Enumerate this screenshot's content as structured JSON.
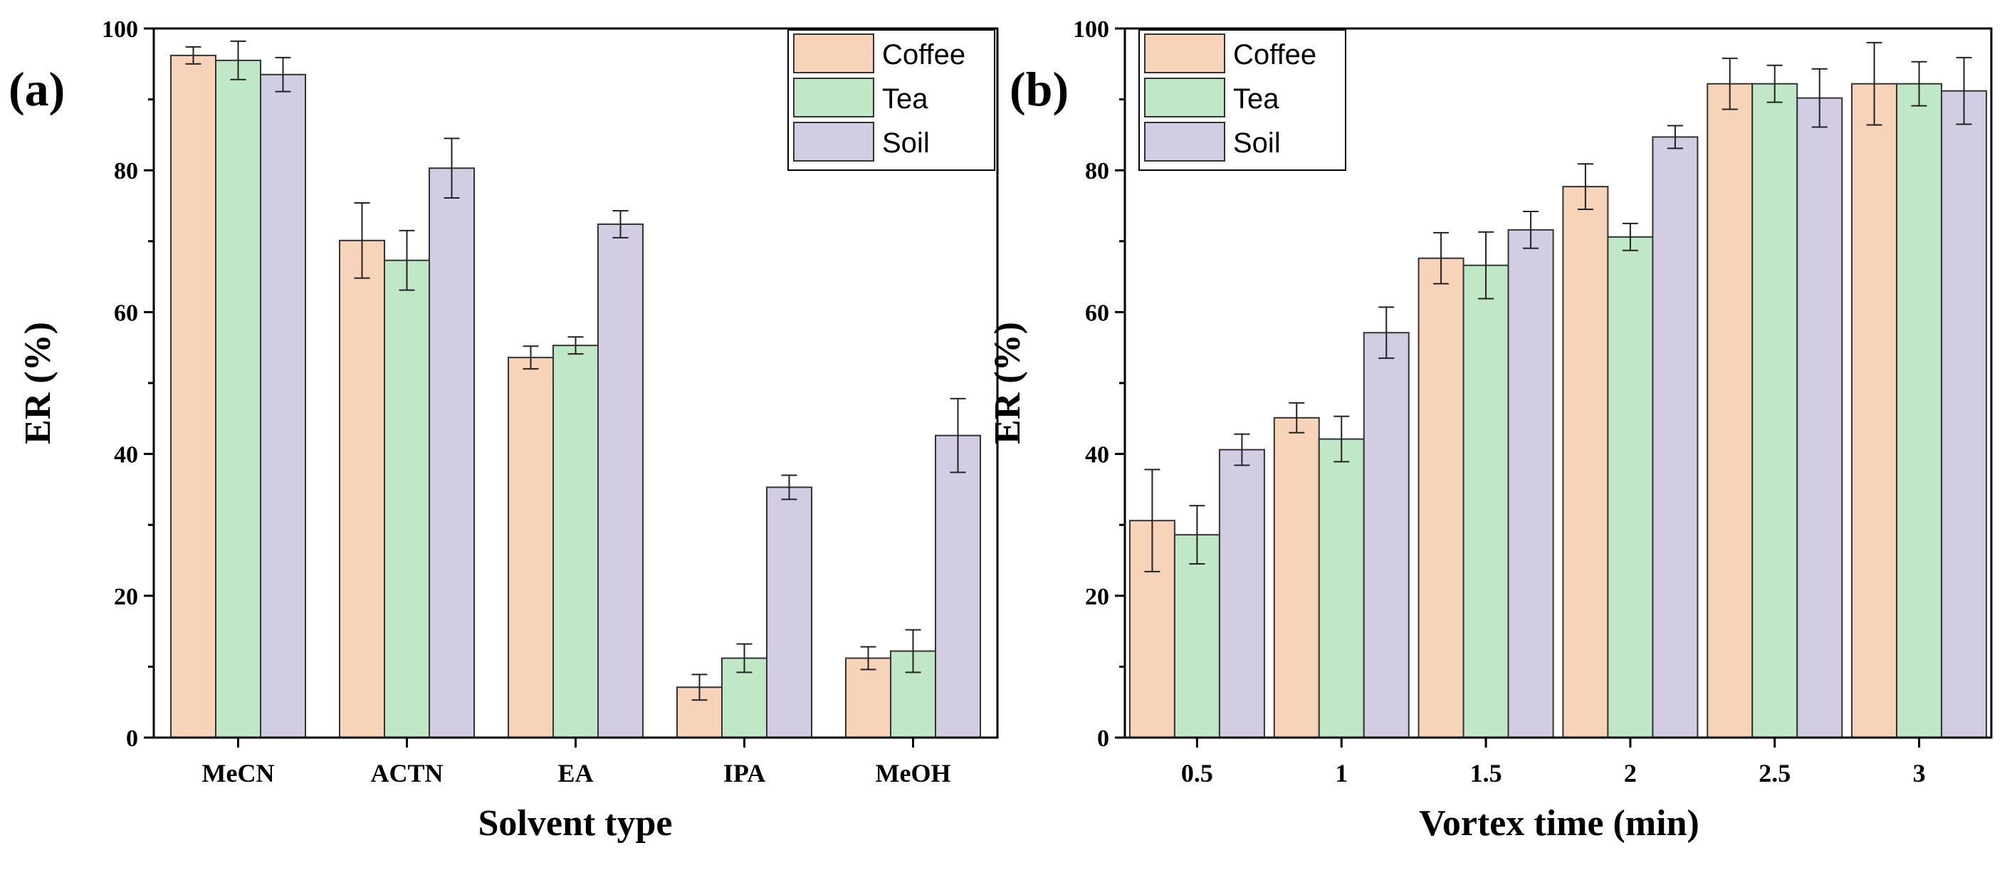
{
  "colors": {
    "Coffee": "#f7d3ba",
    "Tea": "#c1e8c6",
    "Soil": "#d3cde4"
  },
  "chart_data": [
    {
      "type": "bar",
      "panel_label": "(a)",
      "xlabel": "Solvent type",
      "ylabel": "ER (%)",
      "ylim": [
        0,
        100
      ],
      "yticks": [
        0,
        20,
        40,
        60,
        80,
        100
      ],
      "grid": false,
      "legend_position": "top-right",
      "categories": [
        "MeCN",
        "ACTN",
        "EA",
        "IPA",
        "MeOH"
      ],
      "series": [
        {
          "name": "Coffee",
          "values": [
            96.2,
            70.1,
            53.6,
            7.1,
            11.2
          ],
          "errors": [
            1.2,
            5.3,
            1.6,
            1.8,
            1.6
          ]
        },
        {
          "name": "Tea",
          "values": [
            95.5,
            67.3,
            55.3,
            11.2,
            12.2
          ],
          "errors": [
            2.7,
            4.2,
            1.2,
            2.0,
            3.0
          ]
        },
        {
          "name": "Soil",
          "values": [
            93.5,
            80.3,
            72.4,
            35.3,
            42.6
          ],
          "errors": [
            2.4,
            4.2,
            1.9,
            1.7,
            5.2
          ]
        }
      ]
    },
    {
      "type": "bar",
      "panel_label": "(b)",
      "xlabel": "Vortex time (min)",
      "ylabel": "ER (%)",
      "ylim": [
        0,
        100
      ],
      "yticks": [
        0,
        20,
        40,
        60,
        80,
        100
      ],
      "grid": false,
      "legend_position": "top-left",
      "categories": [
        "0.5",
        "1",
        "1.5",
        "2",
        "2.5",
        "3"
      ],
      "series": [
        {
          "name": "Coffee",
          "values": [
            30.6,
            45.1,
            67.6,
            77.7,
            92.2,
            92.2
          ],
          "errors": [
            7.2,
            2.1,
            3.6,
            3.2,
            3.6,
            5.8
          ]
        },
        {
          "name": "Tea",
          "values": [
            28.6,
            42.1,
            66.6,
            70.6,
            92.2,
            92.2
          ],
          "errors": [
            4.1,
            3.2,
            4.7,
            1.9,
            2.6,
            3.1
          ]
        },
        {
          "name": "Soil",
          "values": [
            40.6,
            57.1,
            71.6,
            84.7,
            90.2,
            91.2
          ],
          "errors": [
            2.2,
            3.6,
            2.6,
            1.6,
            4.1,
            4.7
          ]
        }
      ]
    }
  ]
}
